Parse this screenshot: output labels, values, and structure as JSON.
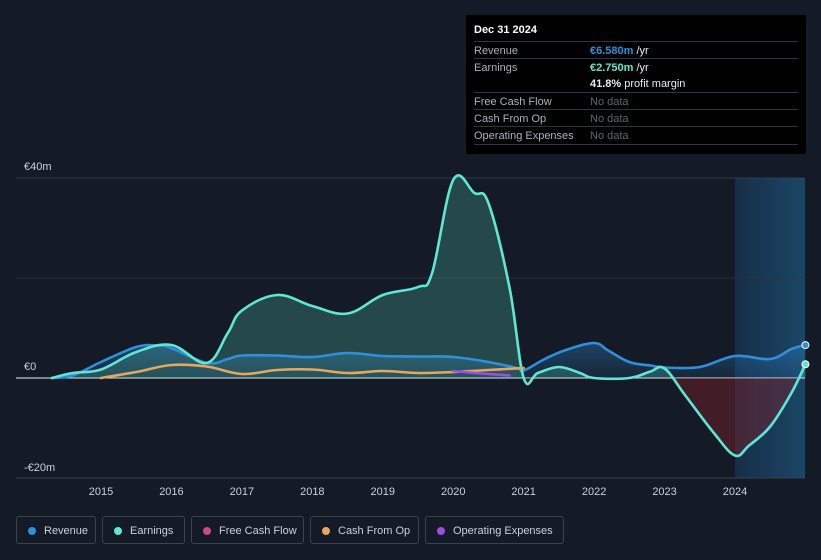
{
  "tooltip": {
    "date": "Dec 31 2024",
    "revenue_label": "Revenue",
    "revenue_value": "€6.580m",
    "revenue_unit": "/yr",
    "earnings_label": "Earnings",
    "earnings_value": "€2.750m",
    "earnings_unit": "/yr",
    "margin_value": "41.8%",
    "margin_text": "profit margin",
    "fcf_label": "Free Cash Flow",
    "fcf_value": "No data",
    "cfo_label": "Cash From Op",
    "cfo_value": "No data",
    "opex_label": "Operating Expenses",
    "opex_value": "No data"
  },
  "legend": [
    {
      "label": "Revenue",
      "color": "#2f8fdc"
    },
    {
      "label": "Earnings",
      "color": "#5ee8d3"
    },
    {
      "label": "Free Cash Flow",
      "color": "#d2468b"
    },
    {
      "label": "Cash From Op",
      "color": "#e6a75c"
    },
    {
      "label": "Operating Expenses",
      "color": "#9b4ee0"
    }
  ],
  "chart_data": {
    "type": "area",
    "title": "",
    "xlabel": "",
    "ylabel": "",
    "ylim": [
      -20,
      40
    ],
    "y_tick_labels": [
      {
        "label": "€40m",
        "value": 40
      },
      {
        "label": "€0",
        "value": 0
      },
      {
        "label": "-€20m",
        "value": -20
      }
    ],
    "xlim": [
      2014.0,
      2025.0
    ],
    "x_tick_labels": [
      "2015",
      "2016",
      "2017",
      "2018",
      "2019",
      "2020",
      "2021",
      "2022",
      "2023",
      "2024"
    ],
    "x_ticks": [
      2015,
      2016,
      2017,
      2018,
      2019,
      2020,
      2021,
      2022,
      2023,
      2024
    ],
    "highlight_range": [
      2024.0,
      2025.0
    ],
    "series": [
      {
        "name": "Revenue",
        "color": "#2f8fdc",
        "points": [
          [
            2014.3,
            0
          ],
          [
            2014.6,
            0.5
          ],
          [
            2015.0,
            3.2
          ],
          [
            2015.5,
            6.2
          ],
          [
            2015.8,
            6.5
          ],
          [
            2016.0,
            6.0
          ],
          [
            2016.5,
            3.0
          ],
          [
            2016.8,
            3.8
          ],
          [
            2017.0,
            4.5
          ],
          [
            2017.5,
            4.5
          ],
          [
            2018.0,
            4.2
          ],
          [
            2018.5,
            5.0
          ],
          [
            2019.0,
            4.4
          ],
          [
            2019.5,
            4.3
          ],
          [
            2020.0,
            4.2
          ],
          [
            2020.5,
            3.2
          ],
          [
            2020.9,
            2.0
          ],
          [
            2021.0,
            1.5
          ],
          [
            2021.3,
            3.8
          ],
          [
            2021.6,
            5.6
          ],
          [
            2022.0,
            7.0
          ],
          [
            2022.2,
            5.5
          ],
          [
            2022.5,
            3.2
          ],
          [
            2022.8,
            2.5
          ],
          [
            2023.0,
            2.1
          ],
          [
            2023.5,
            2.2
          ],
          [
            2024.0,
            4.4
          ],
          [
            2024.5,
            3.8
          ],
          [
            2024.8,
            5.8
          ],
          [
            2025.0,
            6.58
          ]
        ]
      },
      {
        "name": "Earnings",
        "color": "#5ee8d3",
        "points": [
          [
            2014.3,
            0
          ],
          [
            2014.6,
            1.0
          ],
          [
            2015.0,
            1.7
          ],
          [
            2015.5,
            5.2
          ],
          [
            2016.0,
            6.6
          ],
          [
            2016.5,
            3.0
          ],
          [
            2016.8,
            9.0
          ],
          [
            2017.0,
            13.5
          ],
          [
            2017.5,
            16.6
          ],
          [
            2018.0,
            14.4
          ],
          [
            2018.5,
            12.9
          ],
          [
            2019.0,
            16.6
          ],
          [
            2019.5,
            18.2
          ],
          [
            2019.7,
            21.0
          ],
          [
            2020.0,
            39.6
          ],
          [
            2020.3,
            37.0
          ],
          [
            2020.5,
            35.0
          ],
          [
            2020.8,
            18.0
          ],
          [
            2021.0,
            0.0
          ],
          [
            2021.2,
            1.0
          ],
          [
            2021.5,
            2.2
          ],
          [
            2021.8,
            1.0
          ],
          [
            2022.0,
            0.0
          ],
          [
            2022.5,
            0.0
          ],
          [
            2022.8,
            1.3
          ],
          [
            2023.0,
            1.9
          ],
          [
            2023.3,
            -3.6
          ],
          [
            2023.7,
            -11.0
          ],
          [
            2024.0,
            -15.5
          ],
          [
            2024.2,
            -13.5
          ],
          [
            2024.5,
            -9.7
          ],
          [
            2024.8,
            -3.0
          ],
          [
            2025.0,
            2.75
          ]
        ]
      },
      {
        "name": "Cash From Op",
        "color": "#e6a75c",
        "points": [
          [
            2015.0,
            0
          ],
          [
            2015.5,
            1.2
          ],
          [
            2016.0,
            2.6
          ],
          [
            2016.5,
            2.3
          ],
          [
            2017.0,
            0.8
          ],
          [
            2017.5,
            1.6
          ],
          [
            2018.0,
            1.7
          ],
          [
            2018.5,
            1.0
          ],
          [
            2019.0,
            1.4
          ],
          [
            2019.5,
            1.0
          ],
          [
            2020.0,
            1.2
          ],
          [
            2020.5,
            1.6
          ],
          [
            2021.0,
            2.0
          ]
        ]
      },
      {
        "name": "Operating Expenses",
        "color": "#9b4ee0",
        "points": [
          [
            2020.0,
            1.4
          ],
          [
            2020.3,
            1.0
          ],
          [
            2020.5,
            0.8
          ],
          [
            2020.8,
            0.5
          ]
        ]
      }
    ]
  }
}
